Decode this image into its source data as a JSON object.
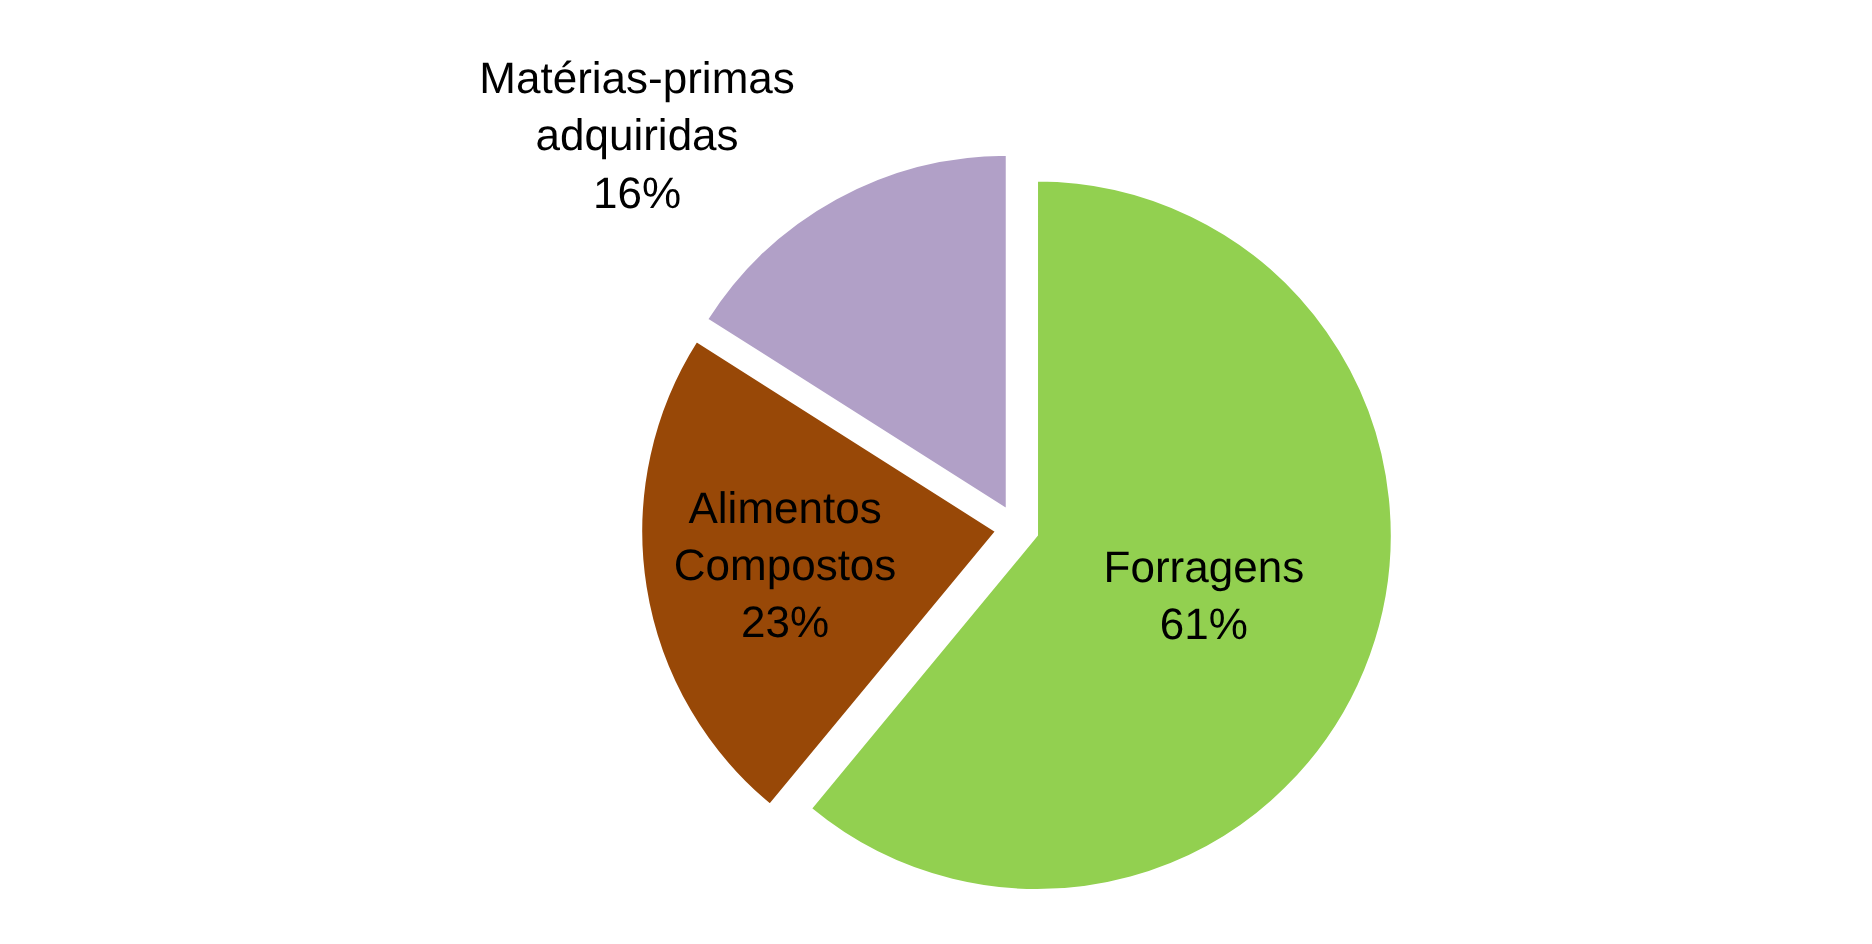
{
  "chart_data": {
    "type": "pie",
    "categories": [
      "Forragens",
      "Alimentos Compostos",
      "Matérias-primas adquiridas"
    ],
    "values": [
      61,
      23,
      16
    ],
    "value_labels": [
      "61%",
      "23%",
      "16%"
    ],
    "colors": [
      "#92d050",
      "#984807",
      "#b1a0c7"
    ],
    "legend": false
  }
}
